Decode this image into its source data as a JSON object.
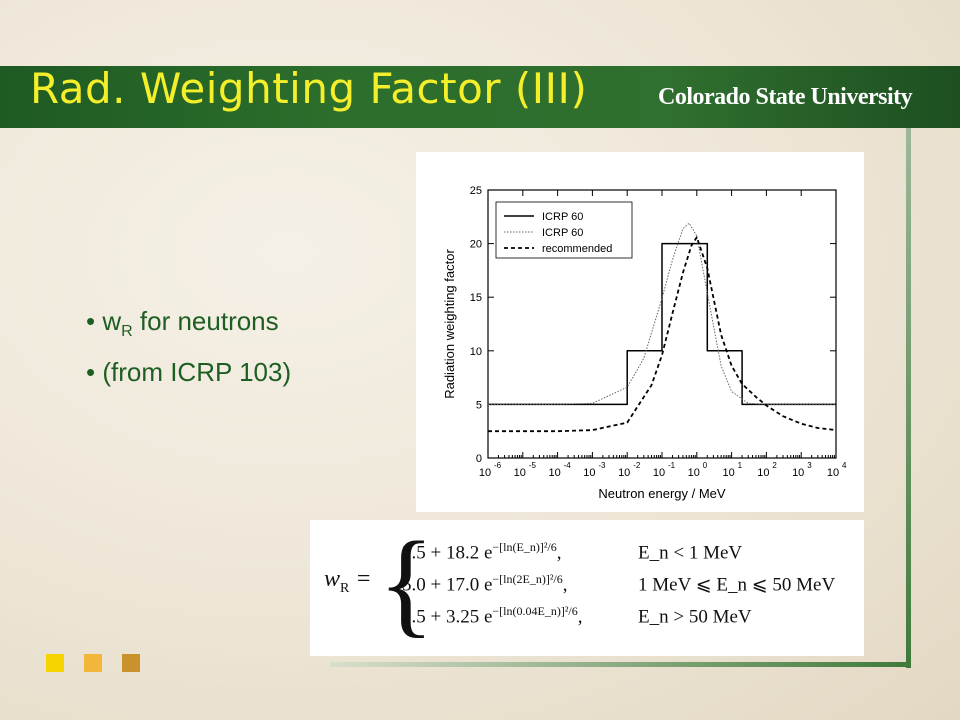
{
  "slide": {
    "title": "Rad. Weighting Factor (III)",
    "logo": "Colorado State University",
    "colors": {
      "title_bar": "#2c6e2c",
      "title_text": "#f4ef2a",
      "bullet_text": "#1f5e22",
      "squares": [
        "#f5d400",
        "#f2b73a",
        "#c9922c"
      ]
    }
  },
  "bullets": [
    {
      "main": "w",
      "sub": "R",
      "rest": " for neutrons"
    },
    {
      "main": "(from ICRP 103)"
    }
  ],
  "formula": {
    "lhs": "w",
    "lhs_sub": "R",
    "rows": [
      {
        "expr": "2.5 + 18.2 e",
        "exponent": "−[ln(E_n)]²/6",
        "condition": "E_n < 1 MeV"
      },
      {
        "expr": "5.0 + 17.0 e",
        "exponent": "−[ln(2E_n)]²/6",
        "condition": "1 MeV ⩽ E_n ⩽ 50 MeV"
      },
      {
        "expr": "2.5 + 3.25 e",
        "exponent": "−[ln(0.04E_n)]²/6",
        "condition": "E_n > 50 MeV"
      }
    ]
  },
  "chart_data": {
    "type": "line",
    "xlabel": "Neutron energy / MeV",
    "ylabel": "Radiation weighting factor",
    "xscale": "log",
    "xlim": [
      1e-06,
      10000.0
    ],
    "ylim": [
      0,
      25
    ],
    "x_ticks": [
      "-6",
      "-5",
      "-4",
      "-3",
      "-2",
      "-1",
      "0",
      "1",
      "2",
      "3",
      "4"
    ],
    "y_ticks": [
      0,
      5,
      10,
      15,
      20,
      25
    ],
    "legend_position": "top-left",
    "series": [
      {
        "name": "ICRP 60",
        "style": "solid",
        "step": true,
        "x": [
          1e-06,
          0.01,
          0.01,
          0.1,
          0.1,
          2,
          2,
          20,
          20,
          10000.0
        ],
        "y": [
          5,
          5,
          10,
          10,
          20,
          20,
          10,
          10,
          5,
          5
        ]
      },
      {
        "name": "ICRP 60",
        "style": "dotted",
        "x": [
          1e-06,
          0.0001,
          0.001,
          0.01,
          0.03,
          0.1,
          0.2,
          0.4,
          0.6,
          1,
          2,
          5,
          10,
          30,
          100,
          1000,
          10000.0
        ],
        "y": [
          5,
          5,
          5.1,
          6.6,
          9.3,
          14.9,
          18.5,
          21.4,
          21.9,
          20.7,
          15.4,
          8.6,
          6.2,
          5.1,
          5,
          5,
          5
        ]
      },
      {
        "name": "recommended",
        "style": "dashed",
        "x": [
          1e-06,
          0.0001,
          0.001,
          0.01,
          0.05,
          0.1,
          0.2,
          0.4,
          0.7,
          1,
          2,
          5,
          10,
          20,
          50,
          100,
          300,
          1000,
          3000,
          10000.0
        ],
        "y": [
          2.5,
          2.5,
          2.6,
          3.3,
          6.8,
          9.6,
          13.5,
          17.3,
          19.8,
          20.6,
          17.7,
          11.5,
          8.6,
          6.9,
          5.7,
          4.9,
          3.9,
          3.2,
          2.8,
          2.6
        ]
      }
    ]
  }
}
